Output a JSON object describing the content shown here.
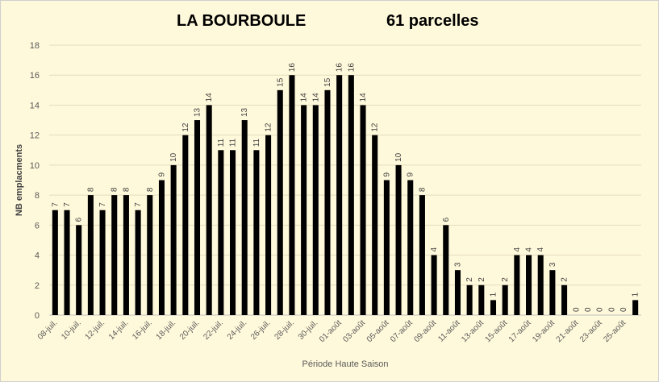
{
  "chart_data": {
    "type": "bar",
    "title_left": "LA BOURBOULE",
    "title_right": "61 parcelles",
    "xlabel": "Période Haute Saison",
    "ylabel": "NB emplacments",
    "ylim": [
      0,
      18
    ],
    "yticks": [
      0,
      2,
      4,
      6,
      8,
      10,
      12,
      14,
      16,
      18
    ],
    "grid": true,
    "legend": "none",
    "bar_color": "#000000",
    "categories": [
      "08-juil.",
      "09-juil.",
      "10-juil.",
      "11-juil.",
      "12-juil.",
      "13-juil.",
      "14-juil.",
      "15-juil.",
      "16-juil.",
      "17-juil.",
      "18-juil.",
      "19-juil.",
      "20-juil.",
      "21-juil.",
      "22-juil.",
      "23-juil.",
      "24-juil.",
      "25-juil.",
      "26-juil.",
      "27-juil.",
      "28-juil.",
      "29-juil.",
      "30-juil.",
      "31-juil.",
      "01-août",
      "02-août",
      "03-août",
      "04-août",
      "05-août",
      "06-août",
      "07-août",
      "08-août",
      "09-août",
      "10-août",
      "11-août",
      "12-août",
      "13-août",
      "14-août",
      "15-août",
      "16-août",
      "17-août",
      "18-août",
      "19-août",
      "20-août",
      "21-août",
      "22-août",
      "23-août",
      "24-août",
      "25-août",
      "26-août"
    ],
    "values": [
      7,
      7,
      6,
      8,
      7,
      8,
      8,
      7,
      8,
      9,
      10,
      12,
      13,
      14,
      11,
      11,
      13,
      11,
      12,
      15,
      16,
      14,
      14,
      15,
      16,
      16,
      14,
      12,
      9,
      10,
      9,
      8,
      4,
      6,
      3,
      2,
      2,
      1,
      2,
      4,
      4,
      4,
      3,
      2,
      0,
      0,
      0,
      0,
      0,
      1
    ]
  }
}
